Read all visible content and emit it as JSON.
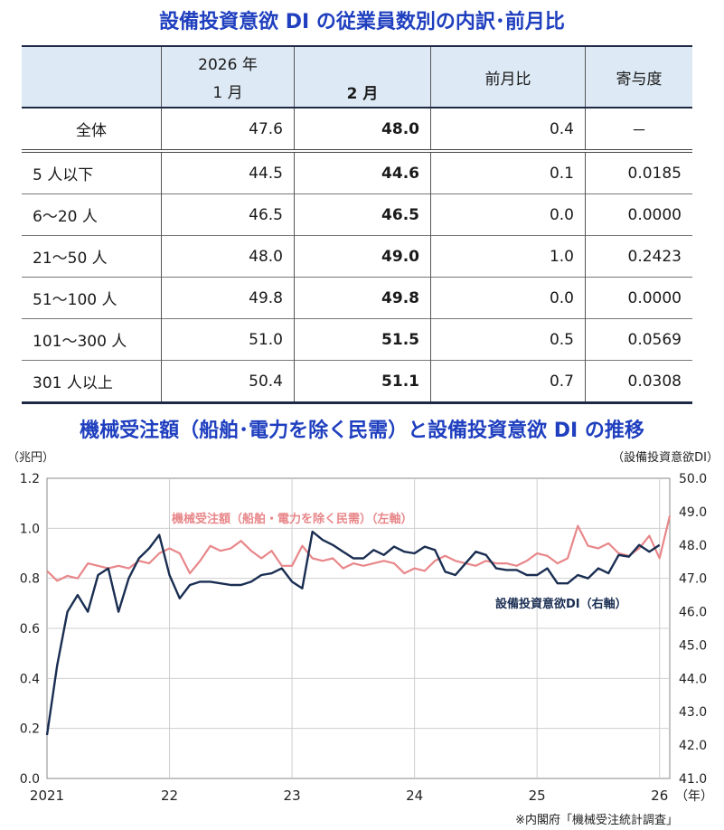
{
  "table": {
    "title": "設備投資意欲 DI の従業員数別の内訳･前月比",
    "headers": {
      "blank": "",
      "col1_year": "2026 年",
      "col1_month": "1 月",
      "col2": "2 月",
      "col3": "前月比",
      "col4": "寄与度"
    },
    "rows": [
      {
        "label": "全体",
        "jan": "47.6",
        "feb": "48.0",
        "mom": "0.4",
        "contrib": "－"
      },
      {
        "label": "5 人以下",
        "jan": "44.5",
        "feb": "44.6",
        "mom": "0.1",
        "contrib": "0.0185"
      },
      {
        "label": "6～20 人",
        "jan": "46.5",
        "feb": "46.5",
        "mom": "0.0",
        "contrib": "0.0000"
      },
      {
        "label": "21～50 人",
        "jan": "48.0",
        "feb": "49.0",
        "mom": "1.0",
        "contrib": "0.2423"
      },
      {
        "label": "51～100 人",
        "jan": "49.8",
        "feb": "49.8",
        "mom": "0.0",
        "contrib": "0.0000"
      },
      {
        "label": "101～300 人",
        "jan": "51.0",
        "feb": "51.5",
        "mom": "0.5",
        "contrib": "0.0569"
      },
      {
        "label": "301 人以上",
        "jan": "50.4",
        "feb": "51.1",
        "mom": "0.7",
        "contrib": "0.0308"
      }
    ]
  },
  "chart_data": {
    "type": "line",
    "title": "機械受注額（船舶･電力を除く民需）と設備投資意欲 DI の推移",
    "ylabel_left": "（兆円）",
    "ylabel_right": "（設備投資意欲DI）",
    "x_unit": "（年）",
    "source": "※内閣府「機械受注統計調査」",
    "x_ticks": [
      {
        "label": "2021",
        "index": 0
      },
      {
        "label": "22",
        "index": 12
      },
      {
        "label": "23",
        "index": 24
      },
      {
        "label": "24",
        "index": 36
      },
      {
        "label": "25",
        "index": 48
      },
      {
        "label": "26",
        "index": 60
      }
    ],
    "ylim_left": [
      0.0,
      1.2
    ],
    "yticks_left": [
      "0.0",
      "0.2",
      "0.4",
      "0.6",
      "0.8",
      "1.0",
      "1.2"
    ],
    "ylim_right": [
      41.0,
      50.0
    ],
    "yticks_right": [
      "41.0",
      "42.0",
      "43.0",
      "44.0",
      "45.0",
      "46.0",
      "47.0",
      "48.0",
      "49.0",
      "50.0"
    ],
    "grid": true,
    "series": [
      {
        "name": "機械受注額（船舶・電力を除く民需）（左軸）",
        "axis": "left",
        "color": "#e8878a",
        "values": [
          0.83,
          0.79,
          0.81,
          0.8,
          0.86,
          0.85,
          0.84,
          0.85,
          0.84,
          0.87,
          0.86,
          0.9,
          0.92,
          0.9,
          0.82,
          0.87,
          0.93,
          0.91,
          0.92,
          0.95,
          0.91,
          0.88,
          0.91,
          0.85,
          0.85,
          0.93,
          0.88,
          0.87,
          0.88,
          0.84,
          0.86,
          0.85,
          0.86,
          0.87,
          0.86,
          0.82,
          0.84,
          0.83,
          0.87,
          0.89,
          0.87,
          0.86,
          0.85,
          0.87,
          0.86,
          0.86,
          0.85,
          0.87,
          0.9,
          0.89,
          0.86,
          0.88,
          1.01,
          0.93,
          0.92,
          0.94,
          0.9,
          0.89,
          0.92,
          0.97,
          0.88,
          1.05
        ]
      },
      {
        "name": "設備投資意欲DI（右軸）",
        "axis": "right",
        "color": "#1a2e52",
        "values": [
          42.3,
          44.4,
          46.0,
          46.5,
          46.0,
          47.1,
          47.3,
          46.0,
          47.0,
          47.6,
          47.9,
          48.3,
          47.1,
          46.4,
          46.8,
          46.9,
          46.9,
          46.85,
          46.8,
          46.8,
          46.9,
          47.1,
          47.15,
          47.3,
          46.9,
          46.7,
          48.4,
          48.15,
          48.0,
          47.8,
          47.6,
          47.6,
          47.85,
          47.7,
          47.95,
          47.8,
          47.75,
          47.95,
          47.85,
          47.2,
          47.1,
          47.45,
          47.8,
          47.7,
          47.3,
          47.25,
          47.25,
          47.1,
          47.1,
          47.3,
          46.85,
          46.85,
          47.1,
          47.0,
          47.3,
          47.15,
          47.7,
          47.65,
          48.0,
          47.8,
          48.0
        ]
      }
    ]
  }
}
